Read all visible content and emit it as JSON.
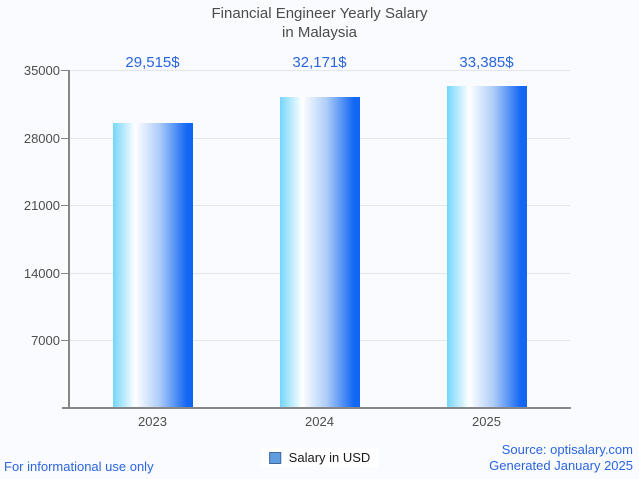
{
  "title": {
    "line1": "Financial Engineer Yearly Salary",
    "line2": "in Malaysia"
  },
  "chart_data": {
    "type": "bar",
    "title": "Financial Engineer Yearly Salary in Malaysia",
    "categories": [
      "2023",
      "2024",
      "2025"
    ],
    "values": [
      29515,
      32171,
      33385
    ],
    "value_labels": [
      "29,515$",
      "32,171$",
      "33,385$"
    ],
    "series_name": "Salary in USD",
    "xlabel": "",
    "ylabel": "",
    "ylim": [
      0,
      35000
    ],
    "y_ticks": [
      7000,
      14000,
      21000,
      28000,
      35000
    ],
    "grid": true,
    "legend_position": "bottom",
    "bar_gradient": [
      "#74d6fb",
      "#ffffff",
      "#0f64f3"
    ]
  },
  "legend": {
    "label": "Salary in USD",
    "marker_color": "#5f9ce0"
  },
  "footer": {
    "left": "For informational use only",
    "source": "Source: optisalary.com",
    "generated": "Generated January 2025"
  },
  "colors": {
    "accent_blue": "#2a65e0",
    "title_gray": "#4c4c4c",
    "background": "#fafbfe",
    "axis_gray": "#868686",
    "gridline_gray": "#e3e6ea"
  }
}
